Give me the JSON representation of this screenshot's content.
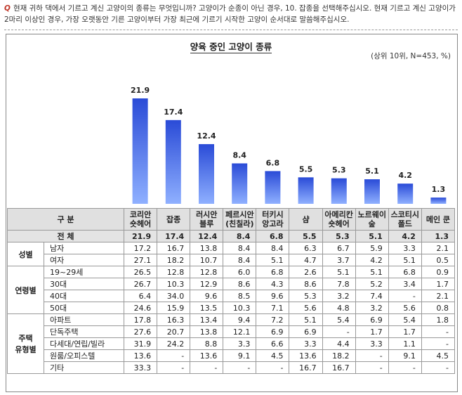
{
  "question": {
    "marker": "Q",
    "text": "현재 귀하 댁에서 기르고 계신 고양이의 종류는 무엇입니까? 고양이가 순종이 아닌 경우, 10. 잡종을 선택해주십시오. 현재 기르고 계신 고양이가 2마리 이상인 경우, 가장 오랫동안 기른 고양이부터 가장 최근에 기르기 시작한 고양이 순서대로 말씀해주십시오."
  },
  "chart_data": {
    "type": "bar",
    "title": "양육 중인 고양이 종류",
    "unit_note": "(상위 10위, N=453, %)",
    "categories": [
      "코리안 숏헤어",
      "잡종",
      "러시안 블루",
      "페르시안 (친칠라)",
      "터키시 앙고라",
      "샴",
      "아메리칸 숏헤어",
      "노르웨이 숲",
      "스코티시 폴드",
      "메인 쿤"
    ],
    "values": [
      21.9,
      17.4,
      12.4,
      8.4,
      6.8,
      5.5,
      5.3,
      5.1,
      4.2,
      1.3
    ],
    "ylim": [
      0,
      25
    ],
    "colors": {
      "bar_top": "#2a4bd7",
      "bar_bottom": "#8fb0ff"
    }
  },
  "table": {
    "header_label": "구 분",
    "columns": [
      [
        "코리안",
        "숏헤어"
      ],
      [
        "잡종"
      ],
      [
        "러시안",
        "블루"
      ],
      [
        "페르시안",
        "(친칠라)"
      ],
      [
        "터키시",
        "앙고라"
      ],
      [
        "샴"
      ],
      [
        "아메리칸",
        "숏헤어"
      ],
      [
        "노르웨이",
        "숲"
      ],
      [
        "스코티시",
        "폴드"
      ],
      [
        "메인 쿤"
      ]
    ],
    "total": {
      "label": "전 체",
      "values": [
        "21.9",
        "17.4",
        "12.4",
        "8.4",
        "6.8",
        "5.5",
        "5.3",
        "5.1",
        "4.2",
        "1.3"
      ]
    },
    "groups": [
      {
        "name": [
          "성별"
        ],
        "rows": [
          {
            "label": "남자",
            "values": [
              "17.2",
              "16.7",
              "13.8",
              "8.4",
              "8.4",
              "6.3",
              "6.7",
              "5.9",
              "3.3",
              "2.1"
            ]
          },
          {
            "label": "여자",
            "values": [
              "27.1",
              "18.2",
              "10.7",
              "8.4",
              "5.1",
              "4.7",
              "3.7",
              "4.2",
              "5.1",
              "0.5"
            ]
          }
        ]
      },
      {
        "name": [
          "연령별"
        ],
        "rows": [
          {
            "label": "19~29세",
            "values": [
              "26.5",
              "12.8",
              "12.8",
              "6.0",
              "6.8",
              "2.6",
              "5.1",
              "5.1",
              "6.8",
              "0.9"
            ]
          },
          {
            "label": "30대",
            "values": [
              "26.7",
              "10.3",
              "12.9",
              "8.6",
              "4.3",
              "8.6",
              "7.8",
              "5.2",
              "3.4",
              "1.7"
            ]
          },
          {
            "label": "40대",
            "values": [
              "6.4",
              "34.0",
              "9.6",
              "8.5",
              "9.6",
              "5.3",
              "3.2",
              "7.4",
              "-",
              "2.1"
            ]
          },
          {
            "label": "50대",
            "values": [
              "24.6",
              "15.9",
              "13.5",
              "10.3",
              "7.1",
              "5.6",
              "4.8",
              "3.2",
              "5.6",
              "0.8"
            ]
          }
        ]
      },
      {
        "name": [
          "주택",
          "유형별"
        ],
        "rows": [
          {
            "label": "아파트",
            "values": [
              "17.8",
              "16.3",
              "13.4",
              "9.4",
              "7.2",
              "5.1",
              "5.4",
              "6.9",
              "5.4",
              "1.8"
            ]
          },
          {
            "label": "단독주택",
            "values": [
              "27.6",
              "20.7",
              "13.8",
              "12.1",
              "6.9",
              "6.9",
              "-",
              "1.7",
              "1.7",
              "-"
            ]
          },
          {
            "label": "다세대/연립/빌라",
            "values": [
              "31.9",
              "24.2",
              "8.8",
              "3.3",
              "6.6",
              "3.3",
              "4.4",
              "3.3",
              "1.1",
              "-"
            ]
          },
          {
            "label": "원룸/오피스텔",
            "values": [
              "13.6",
              "-",
              "13.6",
              "9.1",
              "4.5",
              "13.6",
              "18.2",
              "-",
              "9.1",
              "4.5"
            ]
          },
          {
            "label": "기타",
            "values": [
              "33.3",
              "-",
              "-",
              "-",
              "-",
              "16.7",
              "16.7",
              "-",
              "-",
              "-"
            ]
          }
        ]
      }
    ]
  }
}
